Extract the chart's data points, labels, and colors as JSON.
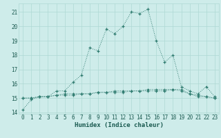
{
  "xlabel": "Humidex (Indice chaleur)",
  "background_color": "#ceecea",
  "grid_color": "#aed8d4",
  "line_color": "#2d7a6e",
  "hours": [
    0,
    1,
    2,
    3,
    4,
    5,
    6,
    7,
    8,
    9,
    10,
    11,
    12,
    13,
    14,
    15,
    16,
    17,
    18,
    19,
    20,
    21,
    22,
    23
  ],
  "series1": [
    14.2,
    14.9,
    15.1,
    15.1,
    15.5,
    15.5,
    16.1,
    16.6,
    18.5,
    18.3,
    19.8,
    19.5,
    20.0,
    21.0,
    20.9,
    21.2,
    19.0,
    17.5,
    18.0,
    15.8,
    15.5,
    15.3,
    15.8,
    15.1
  ],
  "series2": [
    15.0,
    15.0,
    15.1,
    15.1,
    15.2,
    15.3,
    15.3,
    15.3,
    15.3,
    15.4,
    15.4,
    15.4,
    15.4,
    15.5,
    15.5,
    15.5,
    15.5,
    15.5,
    15.6,
    15.6,
    15.3,
    15.2,
    15.1,
    15.0
  ],
  "series3": [
    15.0,
    15.0,
    15.1,
    15.1,
    15.2,
    15.2,
    15.2,
    15.3,
    15.3,
    15.4,
    15.4,
    15.5,
    15.5,
    15.5,
    15.5,
    15.6,
    15.6,
    15.6,
    15.6,
    15.5,
    15.3,
    15.1,
    15.1,
    15.0
  ],
  "ylim": [
    13.9,
    21.6
  ],
  "yticks": [
    14,
    15,
    16,
    17,
    18,
    19,
    20,
    21
  ],
  "xticks": [
    0,
    1,
    2,
    3,
    4,
    5,
    6,
    7,
    8,
    9,
    10,
    11,
    12,
    13,
    14,
    15,
    16,
    17,
    18,
    19,
    20,
    21,
    22,
    23
  ],
  "tick_fontsize": 5.5,
  "xlabel_fontsize": 6.5
}
